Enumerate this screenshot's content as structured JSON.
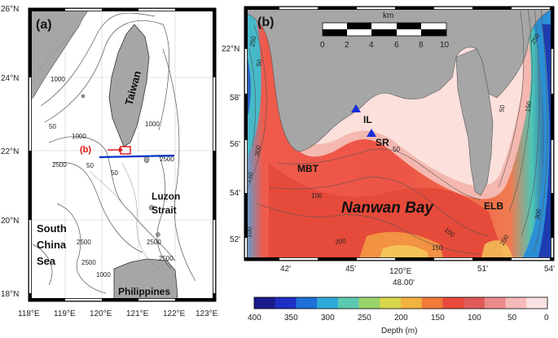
{
  "panel_a": {
    "label": "(a)",
    "inset_label": "(b)",
    "places": {
      "taiwan": "Taiwan",
      "luzon": "Luzon",
      "strait": "Strait",
      "south": "South",
      "china": "China",
      "sea": "Sea",
      "philippines": "Philippines"
    },
    "lat_ticks": [
      "26°N",
      "24°N",
      "22°N",
      "20°N",
      "18°N"
    ],
    "lon_ticks": [
      "118°E",
      "119°E",
      "120°E",
      "121°E",
      "122°E",
      "123°E"
    ],
    "contours": [
      "1000",
      "50",
      "50",
      "1000",
      "2500",
      "1000",
      "2500",
      "2500",
      "2500",
      "2500",
      "1000",
      "2500",
      "50"
    ]
  },
  "panel_b": {
    "label": "(b)",
    "title": "Nanwan Bay",
    "stations": {
      "il": "IL",
      "sr": "SR",
      "mbt": "MBT",
      "elb": "ELB"
    },
    "scale": {
      "unit": "km",
      "labels": [
        "0",
        "2",
        "4",
        "6",
        "8",
        "10"
      ]
    },
    "lat_ticks": [
      "22°N",
      "58'",
      "56'",
      "54'",
      "52'"
    ],
    "lon_ticks": [
      "42'",
      "45'",
      "120°E",
      "51'",
      "54'"
    ],
    "lon_sub": "48.00'",
    "contours": [
      "50",
      "100",
      "150",
      "100",
      "150",
      "200",
      "250",
      "300",
      "50",
      "100",
      "150",
      "200",
      "250",
      "300",
      "50",
      "100",
      "150",
      "100",
      "150",
      "50"
    ]
  },
  "colorbar": {
    "labels": [
      "400",
      "350",
      "300",
      "250",
      "200",
      "150",
      "100",
      "50",
      "0"
    ],
    "title": "Depth (m)",
    "colors": [
      "#1a1a8c",
      "#1f2fc4",
      "#1e6fd6",
      "#2fa9d6",
      "#5cc8b0",
      "#9bd36b",
      "#d8d64a",
      "#f2b23f",
      "#f07a3a",
      "#e94a3c",
      "#e05a5a",
      "#ea8a8a",
      "#f4baba",
      "#fbe2e2"
    ]
  }
}
